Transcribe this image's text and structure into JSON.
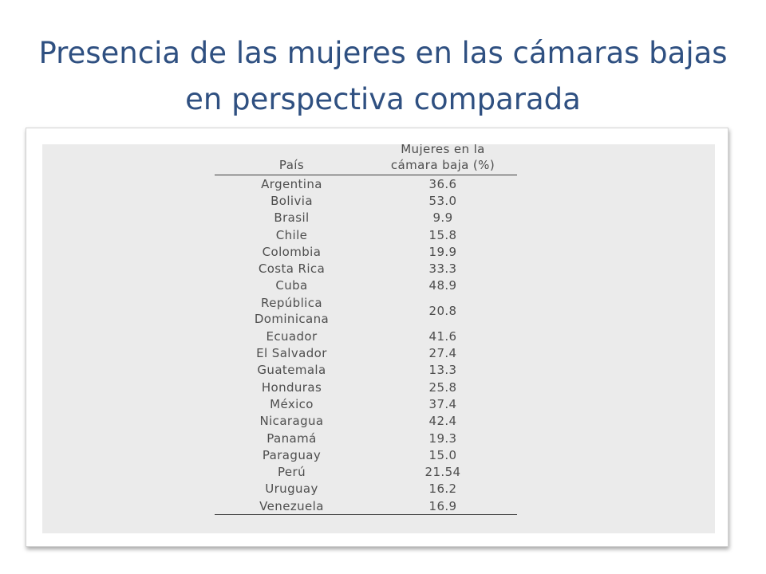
{
  "slide": {
    "title_line1": "Presencia de las mujeres en las cámaras bajas",
    "title_line2": "en perspectiva comparada"
  },
  "table": {
    "headers": {
      "country": "País",
      "women_line1": "Mujeres en la",
      "women_line2": "cámara baja (%)"
    },
    "rows": [
      {
        "country": "Argentina",
        "value": "36.6"
      },
      {
        "country": "Bolivia",
        "value": "53.0"
      },
      {
        "country": "Brasil",
        "value": "9.9"
      },
      {
        "country": "Chile",
        "value": "15.8"
      },
      {
        "country": "Colombia",
        "value": "19.9"
      },
      {
        "country": "Costa Rica",
        "value": "33.3"
      },
      {
        "country": "Cuba",
        "value": "48.9"
      },
      {
        "country_line1": "República",
        "country_line2": "Dominicana",
        "value": "20.8"
      },
      {
        "country": "Ecuador",
        "value": "41.6"
      },
      {
        "country": "El Salvador",
        "value": "27.4"
      },
      {
        "country": "Guatemala",
        "value": "13.3"
      },
      {
        "country": "Honduras",
        "value": "25.8"
      },
      {
        "country": "México",
        "value": "37.4"
      },
      {
        "country": "Nicaragua",
        "value": "42.4"
      },
      {
        "country": "Panamá",
        "value": "19.3"
      },
      {
        "country": "Paraguay",
        "value": "15.0"
      },
      {
        "country": "Perú",
        "value": "21.54"
      },
      {
        "country": "Uruguay",
        "value": "16.2"
      },
      {
        "country": "Venezuela",
        "value": "16.9"
      }
    ]
  },
  "colors": {
    "title": "#2f5081",
    "table_text": "#4e4e4e",
    "panel_background": "#ebebeb"
  }
}
